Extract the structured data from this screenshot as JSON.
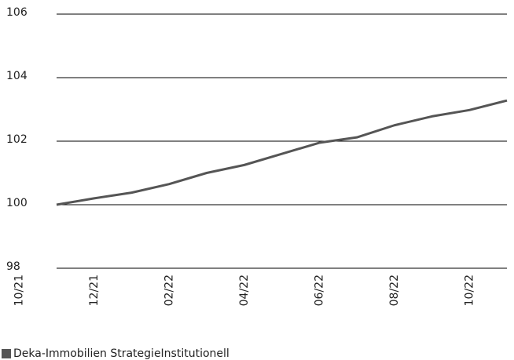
{
  "chart_data": {
    "type": "line",
    "categories": [
      "10/21",
      null,
      "12/21",
      null,
      "02/22",
      null,
      "04/22",
      null,
      "06/22",
      null,
      "08/22",
      null,
      "10/22",
      null
    ],
    "series": [
      {
        "name": "Deka-Immobilien StrategieInstitutionell",
        "color": "#555555",
        "values": [
          null,
          100,
          100.2,
          100.38,
          100.65,
          101.0,
          101.25,
          101.6,
          101.95,
          102.12,
          102.5,
          102.78,
          102.98,
          103.28
        ]
      }
    ],
    "ylim": [
      98,
      106
    ],
    "yticks": [
      98,
      100,
      102,
      104,
      106
    ],
    "grid": true,
    "legend": "bottom-left"
  }
}
